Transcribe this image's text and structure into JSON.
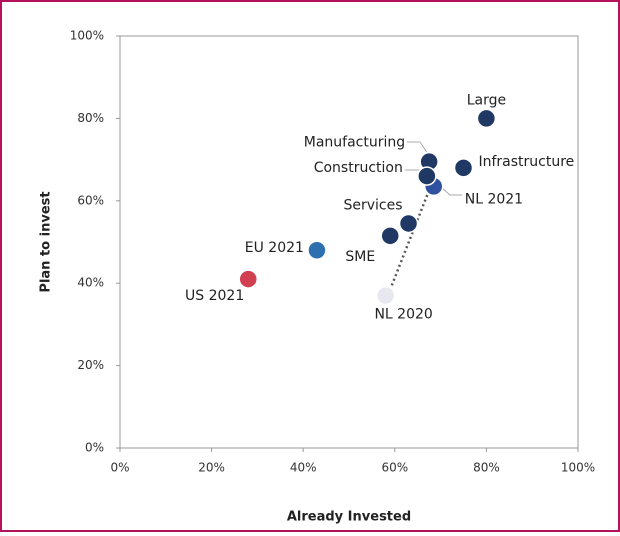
{
  "chart_data": {
    "type": "scatter",
    "xlabel": "Already Invested",
    "ylabel": "Plan to invest",
    "xlim": [
      0,
      100
    ],
    "ylim": [
      0,
      100
    ],
    "xticks": [
      {
        "value": 0,
        "label": "0%"
      },
      {
        "value": 20,
        "label": "20%"
      },
      {
        "value": 40,
        "label": "40%"
      },
      {
        "value": 60,
        "label": "60%"
      },
      {
        "value": 80,
        "label": "80%"
      },
      {
        "value": 100,
        "label": "100%"
      }
    ],
    "yticks": [
      {
        "value": 0,
        "label": "0%"
      },
      {
        "value": 20,
        "label": "20%"
      },
      {
        "value": 40,
        "label": "40%"
      },
      {
        "value": 60,
        "label": "60%"
      },
      {
        "value": 80,
        "label": "80%"
      },
      {
        "value": 100,
        "label": "100%"
      }
    ],
    "points": [
      {
        "label": "Large",
        "x": 80,
        "y": 80,
        "color": "#1f3864"
      },
      {
        "label": "Infrastructure",
        "x": 75,
        "y": 68,
        "color": "#1f3864"
      },
      {
        "label": "Manufacturing",
        "x": 67.5,
        "y": 69.5,
        "color": "#1f3864"
      },
      {
        "label": "NL 2021",
        "x": 68.5,
        "y": 63.5,
        "color": "#3050a0"
      },
      {
        "label": "Construction",
        "x": 67,
        "y": 66,
        "color": "#1f3864"
      },
      {
        "label": "Services",
        "x": 63,
        "y": 54.5,
        "color": "#1f3864"
      },
      {
        "label": "SME",
        "x": 59,
        "y": 51.5,
        "color": "#1f3864"
      },
      {
        "label": "EU 2021",
        "x": 43,
        "y": 48,
        "color": "#2e6fb0"
      },
      {
        "label": "US 2021",
        "x": 28,
        "y": 41,
        "color": "#d04050"
      },
      {
        "label": "NL 2020",
        "x": 58,
        "y": 37,
        "color": "#e8e8f0"
      }
    ]
  }
}
